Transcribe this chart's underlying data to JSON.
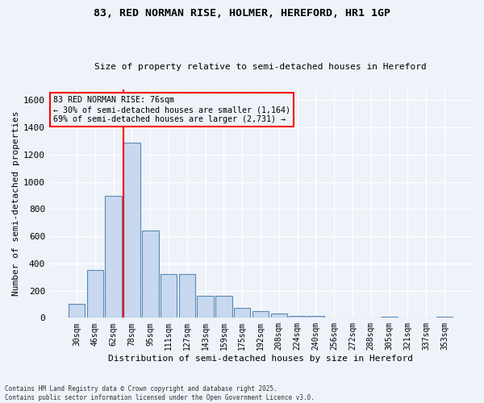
{
  "title_line1": "83, RED NORMAN RISE, HOLMER, HEREFORD, HR1 1GP",
  "title_line2": "Size of property relative to semi-detached houses in Hereford",
  "xlabel": "Distribution of semi-detached houses by size in Hereford",
  "ylabel": "Number of semi-detached properties",
  "categories": [
    "30sqm",
    "46sqm",
    "62sqm",
    "78sqm",
    "95sqm",
    "111sqm",
    "127sqm",
    "143sqm",
    "159sqm",
    "175sqm",
    "192sqm",
    "208sqm",
    "224sqm",
    "240sqm",
    "256sqm",
    "272sqm",
    "288sqm",
    "305sqm",
    "321sqm",
    "337sqm",
    "353sqm"
  ],
  "values": [
    100,
    350,
    900,
    1290,
    645,
    325,
    325,
    160,
    160,
    75,
    50,
    30,
    15,
    15,
    0,
    0,
    0,
    5,
    0,
    0,
    5
  ],
  "bar_color": "#c8d8ef",
  "bar_edge_color": "#5a8ab5",
  "red_line_index": 3,
  "annotation_text_line1": "83 RED NORMAN RISE: 76sqm",
  "annotation_text_line2": "← 30% of semi-detached houses are smaller (1,164)",
  "annotation_text_line3": "69% of semi-detached houses are larger (2,731) →",
  "ylim": [
    0,
    1680
  ],
  "yticks": [
    0,
    200,
    400,
    600,
    800,
    1000,
    1200,
    1400,
    1600
  ],
  "footer_line1": "Contains HM Land Registry data © Crown copyright and database right 2025.",
  "footer_line2": "Contains public sector information licensed under the Open Government Licence v3.0.",
  "bg_color": "#eef2f9",
  "grid_color": "#ffffff"
}
